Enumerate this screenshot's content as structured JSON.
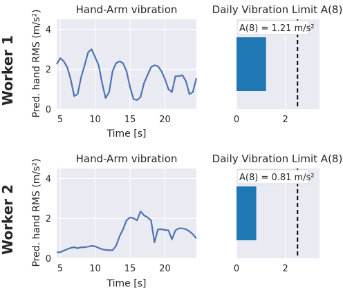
{
  "rows": [
    {
      "row_label": "Worker 1",
      "line_title": "Hand-Arm vibration",
      "bar_title": "Daily Vibration Limit A(8)",
      "annotation": "A(8) = 1.21 m/s²"
    },
    {
      "row_label": "Worker 2",
      "line_title": "Hand-Arm vibration",
      "bar_title": "Daily Vibration Limit A(8)",
      "annotation": "A(8) = 0.81 m/s²"
    }
  ],
  "chart_data": [
    {
      "type": "line",
      "title": "Hand-Arm vibration",
      "xlabel": "Time [s]",
      "ylabel": "Pred. hand RMS (m/s²)",
      "xlim": [
        4.5,
        24.5
      ],
      "ylim": [
        0,
        4.5
      ],
      "xticks": [
        5,
        10,
        15,
        20
      ],
      "yticks": [
        0,
        2,
        4
      ],
      "grid": true,
      "color": "#4c72b0",
      "x": [
        4.5,
        5.0,
        5.5,
        6.0,
        6.5,
        7.0,
        7.5,
        8.0,
        8.5,
        9.0,
        9.5,
        10.0,
        10.5,
        11.0,
        11.5,
        12.0,
        12.5,
        13.0,
        13.5,
        14.0,
        14.5,
        15.0,
        15.5,
        16.0,
        16.5,
        17.0,
        17.5,
        18.0,
        18.5,
        19.0,
        19.5,
        20.0,
        20.5,
        21.0,
        21.5,
        22.0,
        22.5,
        23.0,
        23.5,
        24.0,
        24.5
      ],
      "y": [
        2.25,
        2.55,
        2.4,
        2.1,
        1.5,
        0.65,
        0.75,
        1.6,
        2.2,
        2.85,
        3.0,
        2.6,
        2.2,
        1.3,
        0.55,
        0.85,
        1.9,
        2.3,
        2.4,
        2.3,
        1.9,
        1.1,
        0.5,
        0.45,
        0.6,
        1.3,
        1.7,
        2.1,
        2.2,
        2.15,
        1.9,
        1.5,
        1.0,
        0.85,
        1.65,
        1.65,
        1.7,
        1.4,
        0.75,
        0.85,
        1.55
      ]
    },
    {
      "type": "bar",
      "title": "Daily Vibration Limit A(8)",
      "orientation": "horizontal",
      "xlim": [
        0,
        3.4
      ],
      "xticks": [
        0,
        2
      ],
      "value": 1.21,
      "bar_start": 0.9,
      "bar_end": 3.6,
      "threshold": 2.5,
      "color": "#1f77b4"
    },
    {
      "type": "line",
      "title": "Hand-Arm vibration",
      "xlabel": "Time [s]",
      "ylabel": "Pred. hand RMS (m/s²)",
      "xlim": [
        4.5,
        24.5
      ],
      "ylim": [
        0,
        4.5
      ],
      "xticks": [
        5,
        10,
        15,
        20
      ],
      "yticks": [
        0,
        2,
        4
      ],
      "grid": true,
      "color": "#4c72b0",
      "x": [
        4.5,
        5.0,
        5.5,
        6.0,
        6.5,
        7.0,
        7.5,
        8.0,
        8.5,
        9.0,
        9.5,
        10.0,
        10.5,
        11.0,
        11.5,
        12.0,
        12.5,
        13.0,
        13.5,
        14.0,
        14.5,
        15.0,
        15.5,
        16.0,
        16.5,
        17.0,
        17.5,
        18.0,
        18.5,
        19.0,
        19.5,
        20.0,
        20.5,
        21.0,
        21.5,
        22.0,
        22.5,
        23.0,
        23.5,
        24.0,
        24.5
      ],
      "y": [
        0.3,
        0.3,
        0.38,
        0.45,
        0.52,
        0.55,
        0.5,
        0.55,
        0.55,
        0.58,
        0.62,
        0.6,
        0.52,
        0.45,
        0.42,
        0.4,
        0.4,
        0.62,
        1.1,
        1.45,
        1.9,
        2.05,
        2.0,
        1.9,
        2.35,
        2.15,
        2.05,
        1.9,
        0.8,
        1.45,
        1.45,
        1.42,
        1.4,
        0.95,
        1.4,
        1.5,
        1.5,
        1.45,
        1.35,
        1.2,
        1.0
      ]
    },
    {
      "type": "bar",
      "title": "Daily Vibration Limit A(8)",
      "orientation": "horizontal",
      "xlim": [
        0,
        3.4
      ],
      "xticks": [
        0,
        2
      ],
      "value": 0.81,
      "bar_start": 0.9,
      "bar_end": 3.6,
      "threshold": 2.5,
      "color": "#1f77b4"
    }
  ]
}
